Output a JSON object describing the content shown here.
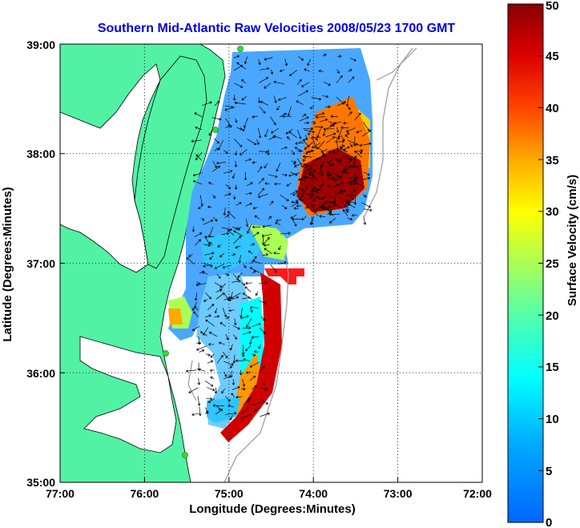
{
  "title": "Southern Mid-Atlantic Raw Velocities 2008/05/23 1700 GMT",
  "x_axis": {
    "label": "Longitude (Degrees:Minutes)",
    "ticks": [
      "77:00",
      "76:00",
      "75:00",
      "74:00",
      "73:00",
      "72:00"
    ]
  },
  "y_axis": {
    "label": "Latitude (Degrees:Minutes)",
    "ticks": [
      "39:00",
      "38:00",
      "37:00",
      "36:00",
      "35:00"
    ]
  },
  "colorbar": {
    "label": "Surface Velocity (cm/s)",
    "ticks": [
      "50",
      "45",
      "40",
      "35",
      "30",
      "25",
      "20",
      "15",
      "10",
      "5",
      "0"
    ],
    "min": 0,
    "max": 50,
    "colormap": "jet"
  },
  "colors": {
    "land": "#52f2a4",
    "background": "#ffffff",
    "title": "#0000ee",
    "station": "#33dd33"
  },
  "chart_data": {
    "type": "heatmap",
    "grid": "dotted",
    "xlim": [
      -77,
      -72
    ],
    "ylim": [
      35,
      39
    ]
  }
}
